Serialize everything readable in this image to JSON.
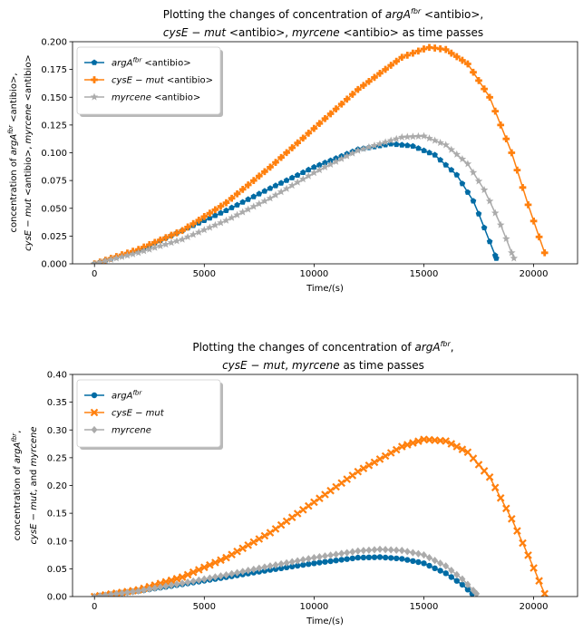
{
  "chart_data": [
    {
      "type": "line",
      "title_parts": [
        [
          "Plotting the changes of concentration of ",
          "argA",
          "fbr",
          " <antibio>,"
        ],
        [
          "cysE − mut",
          " <antibio>, ",
          "myrcene",
          " <antibio> as time passes"
        ]
      ],
      "title": "Plotting the changes of concentration of argA^fbr <antibio>, cysE-mut <antibio>, myrcene <antibio> as time passes",
      "xlabel": "Time/(s)",
      "ylabel_lines": [
        "concentration of argA^fbr <antibio>,",
        "cysE − mut <antibio>, myrcene <antibio>"
      ],
      "xlim": [
        -1000,
        22000
      ],
      "ylim": [
        0,
        0.2
      ],
      "xticks": [
        0,
        5000,
        10000,
        15000,
        20000
      ],
      "yticks": [
        0.0,
        0.025,
        0.05,
        0.075,
        0.1,
        0.125,
        0.15,
        0.175,
        0.2
      ],
      "ytick_labels": [
        "0.000",
        "0.025",
        "0.050",
        "0.075",
        "0.100",
        "0.125",
        "0.150",
        "0.175",
        "0.200"
      ],
      "legend_position": "upper-left",
      "series": [
        {
          "name": "argA^fbr <antibio>",
          "legend_parts": [
            "argA",
            "fbr",
            " <antibio>"
          ],
          "color": "#006ba4",
          "marker": "pentagon",
          "points": [
            [
              0,
              0
            ],
            [
              2000,
              0.012
            ],
            [
              4000,
              0.03
            ],
            [
              6000,
              0.048
            ],
            [
              8000,
              0.068
            ],
            [
              10000,
              0.087
            ],
            [
              12000,
              0.103
            ],
            [
              13500,
              0.108
            ],
            [
              14500,
              0.106
            ],
            [
              15500,
              0.098
            ],
            [
              16500,
              0.08
            ],
            [
              17300,
              0.055
            ],
            [
              17800,
              0.03
            ],
            [
              18300,
              0.005
            ]
          ]
        },
        {
          "name": "cysE − mut <antibio>",
          "legend_parts": [
            "cysE − mut",
            "",
            " <antibio>"
          ],
          "color": "#ff800e",
          "marker": "plus",
          "points": [
            [
              0,
              0
            ],
            [
              2000,
              0.013
            ],
            [
              4000,
              0.03
            ],
            [
              6000,
              0.055
            ],
            [
              8000,
              0.087
            ],
            [
              10000,
              0.122
            ],
            [
              12000,
              0.157
            ],
            [
              14000,
              0.186
            ],
            [
              15200,
              0.195
            ],
            [
              16000,
              0.193
            ],
            [
              17000,
              0.18
            ],
            [
              18000,
              0.15
            ],
            [
              19000,
              0.1
            ],
            [
              19800,
              0.05
            ],
            [
              20500,
              0.01
            ]
          ]
        },
        {
          "name": "myrcene <antibio>",
          "legend_parts": [
            "myrcene",
            "",
            " <antibio>"
          ],
          "color": "#ababab",
          "marker": "star",
          "points": [
            [
              0,
              0
            ],
            [
              2000,
              0.01
            ],
            [
              4000,
              0.022
            ],
            [
              6000,
              0.039
            ],
            [
              8000,
              0.059
            ],
            [
              10000,
              0.082
            ],
            [
              12000,
              0.102
            ],
            [
              14000,
              0.114
            ],
            [
              15000,
              0.115
            ],
            [
              16000,
              0.107
            ],
            [
              17000,
              0.09
            ],
            [
              17800,
              0.065
            ],
            [
              18500,
              0.035
            ],
            [
              19100,
              0.005
            ]
          ]
        }
      ]
    },
    {
      "type": "line",
      "title_parts": [
        [
          "Plotting the changes of concentration of ",
          "argA",
          "fbr",
          ","
        ],
        [
          "cysE − mut",
          ", ",
          "myrcene",
          " as time passes"
        ]
      ],
      "title": "Plotting the changes of concentration of argA^fbr, cysE-mut, myrcene as time passes",
      "xlabel": "Time/(s)",
      "ylabel_lines": [
        "concentration of argA^fbr,",
        "cysE − mut, and myrcene"
      ],
      "xlim": [
        -1000,
        22000
      ],
      "ylim": [
        0,
        0.4
      ],
      "xticks": [
        0,
        5000,
        10000,
        15000,
        20000
      ],
      "yticks": [
        0.0,
        0.05,
        0.1,
        0.15,
        0.2,
        0.25,
        0.3,
        0.35,
        0.4
      ],
      "ytick_labels": [
        "0.00",
        "0.05",
        "0.10",
        "0.15",
        "0.20",
        "0.25",
        "0.30",
        "0.35",
        "0.40"
      ],
      "legend_position": "upper-left",
      "series": [
        {
          "name": "argA^fbr",
          "legend_parts": [
            "argA",
            "fbr",
            ""
          ],
          "color": "#006ba4",
          "marker": "circle",
          "points": [
            [
              0,
              0
            ],
            [
              2000,
              0.01
            ],
            [
              4000,
              0.022
            ],
            [
              6000,
              0.035
            ],
            [
              8000,
              0.048
            ],
            [
              10000,
              0.06
            ],
            [
              12000,
              0.07
            ],
            [
              13000,
              0.071
            ],
            [
              14000,
              0.068
            ],
            [
              15000,
              0.06
            ],
            [
              16000,
              0.042
            ],
            [
              16800,
              0.02
            ],
            [
              17200,
              0.005
            ]
          ]
        },
        {
          "name": "cysE − mut",
          "legend_parts": [
            "cysE − mut",
            "",
            ""
          ],
          "color": "#ff800e",
          "marker": "x",
          "points": [
            [
              0,
              0
            ],
            [
              2000,
              0.012
            ],
            [
              4000,
              0.035
            ],
            [
              6000,
              0.07
            ],
            [
              8000,
              0.115
            ],
            [
              10000,
              0.17
            ],
            [
              12000,
              0.225
            ],
            [
              14000,
              0.27
            ],
            [
              15000,
              0.283
            ],
            [
              16000,
              0.28
            ],
            [
              17000,
              0.26
            ],
            [
              18000,
              0.215
            ],
            [
              19000,
              0.14
            ],
            [
              19800,
              0.07
            ],
            [
              20500,
              0.005
            ]
          ]
        },
        {
          "name": "myrcene",
          "legend_parts": [
            "myrcene",
            "",
            ""
          ],
          "color": "#ababab",
          "marker": "diamond",
          "points": [
            [
              0,
              0
            ],
            [
              2000,
              0.01
            ],
            [
              4000,
              0.024
            ],
            [
              6000,
              0.039
            ],
            [
              8000,
              0.055
            ],
            [
              10000,
              0.07
            ],
            [
              12000,
              0.082
            ],
            [
              13000,
              0.085
            ],
            [
              14000,
              0.083
            ],
            [
              15000,
              0.075
            ],
            [
              16000,
              0.055
            ],
            [
              16800,
              0.03
            ],
            [
              17400,
              0.005
            ]
          ]
        }
      ]
    }
  ]
}
